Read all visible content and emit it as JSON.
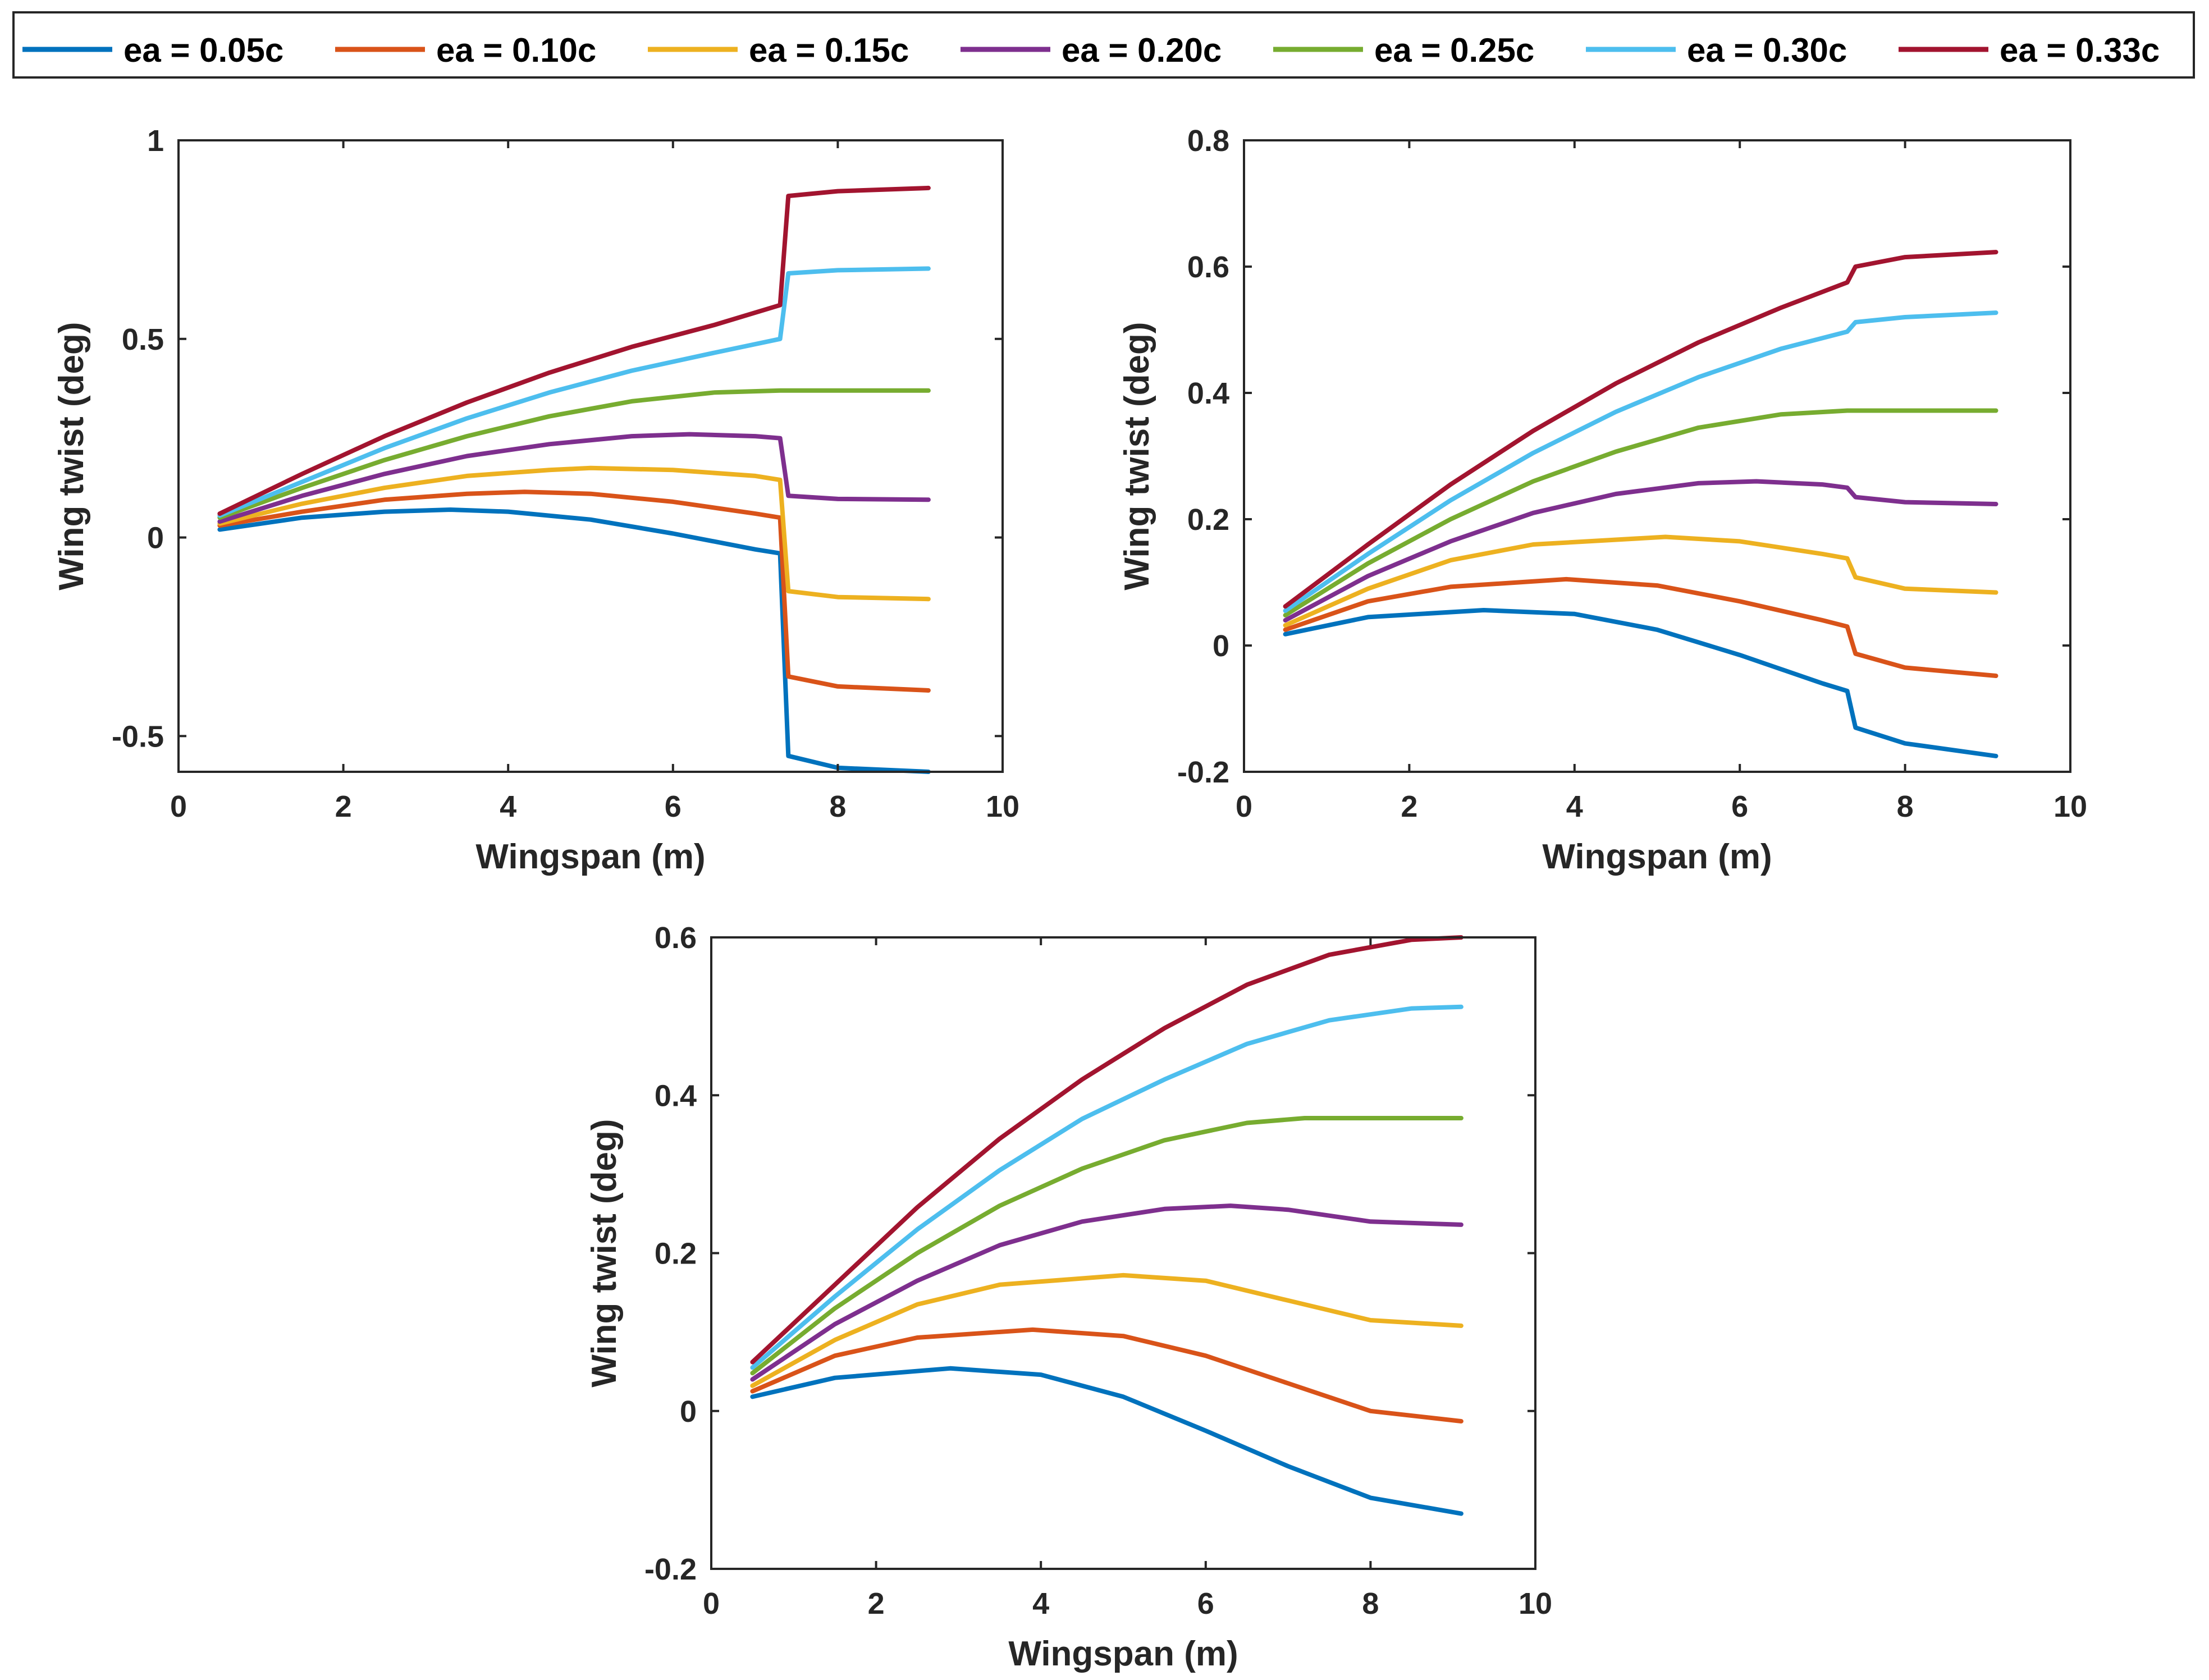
{
  "legend": [
    {
      "label": "ea = 0.05c",
      "color": "#0072BD"
    },
    {
      "label": "ea = 0.10c",
      "color": "#D95319"
    },
    {
      "label": "ea = 0.15c",
      "color": "#EDB120"
    },
    {
      "label": "ea = 0.20c",
      "color": "#7E2F8E"
    },
    {
      "label": "ea = 0.25c",
      "color": "#77AC30"
    },
    {
      "label": "ea = 0.30c",
      "color": "#4DBEEE"
    },
    {
      "label": "ea = 0.33c",
      "color": "#A2142F"
    }
  ],
  "chart_data": [
    {
      "type": "line",
      "title": "",
      "xlabel": "Wingspan (m)",
      "ylabel": "Wing twist (deg)",
      "xlim": [
        0,
        10
      ],
      "ylim": [
        -0.59,
        1
      ],
      "xticks": [
        0,
        2,
        4,
        6,
        8,
        10
      ],
      "yticks": [
        -0.5,
        0,
        0.5,
        1
      ],
      "ytick_labels": [
        "-0.5",
        "0",
        "0.5",
        "1"
      ],
      "series": [
        {
          "name": "ea = 0.05c",
          "x": [
            0.5,
            1.5,
            2.5,
            3.3,
            4.0,
            5.0,
            6.0,
            7.0,
            7.3,
            7.4,
            8.0,
            9.1
          ],
          "y": [
            0.02,
            0.05,
            0.065,
            0.07,
            0.065,
            0.045,
            0.01,
            -0.03,
            -0.04,
            -0.55,
            -0.58,
            -0.59
          ]
        },
        {
          "name": "ea = 0.10c",
          "x": [
            0.5,
            1.5,
            2.5,
            3.5,
            4.2,
            5.0,
            6.0,
            7.0,
            7.3,
            7.4,
            8.0,
            9.1
          ],
          "y": [
            0.03,
            0.065,
            0.095,
            0.11,
            0.115,
            0.11,
            0.09,
            0.06,
            0.05,
            -0.35,
            -0.375,
            -0.385
          ]
        },
        {
          "name": "ea = 0.15c",
          "x": [
            0.5,
            1.5,
            2.5,
            3.5,
            4.5,
            5.0,
            6.0,
            7.0,
            7.3,
            7.4,
            8.0,
            9.1
          ],
          "y": [
            0.035,
            0.085,
            0.125,
            0.155,
            0.17,
            0.175,
            0.17,
            0.155,
            0.145,
            -0.135,
            -0.15,
            -0.155
          ]
        },
        {
          "name": "ea = 0.20c",
          "x": [
            0.5,
            1.5,
            2.5,
            3.5,
            4.5,
            5.5,
            6.2,
            7.0,
            7.3,
            7.4,
            8.0,
            9.1
          ],
          "y": [
            0.04,
            0.105,
            0.16,
            0.205,
            0.235,
            0.255,
            0.26,
            0.255,
            0.25,
            0.105,
            0.097,
            0.095
          ]
        },
        {
          "name": "ea = 0.25c",
          "x": [
            0.5,
            1.5,
            2.5,
            3.5,
            4.5,
            5.5,
            6.5,
            7.3,
            8.0,
            9.1
          ],
          "y": [
            0.05,
            0.125,
            0.195,
            0.255,
            0.305,
            0.343,
            0.365,
            0.37,
            0.37,
            0.37
          ]
        },
        {
          "name": "ea = 0.30c",
          "x": [
            0.5,
            1.5,
            2.5,
            3.5,
            4.5,
            5.5,
            6.5,
            7.3,
            7.4,
            8.0,
            9.1
          ],
          "y": [
            0.055,
            0.14,
            0.225,
            0.3,
            0.365,
            0.42,
            0.465,
            0.5,
            0.665,
            0.673,
            0.677
          ]
        },
        {
          "name": "ea = 0.33c",
          "x": [
            0.5,
            1.5,
            2.5,
            3.5,
            4.5,
            5.5,
            6.5,
            7.3,
            7.4,
            8.0,
            9.1
          ],
          "y": [
            0.06,
            0.16,
            0.255,
            0.34,
            0.415,
            0.48,
            0.535,
            0.585,
            0.86,
            0.872,
            0.88
          ]
        }
      ]
    },
    {
      "type": "line",
      "title": "",
      "xlabel": "Wingspan (m)",
      "ylabel": "Wing twist (deg)",
      "xlim": [
        0,
        10
      ],
      "ylim": [
        -0.2,
        0.8
      ],
      "xticks": [
        0,
        2,
        4,
        6,
        8,
        10
      ],
      "yticks": [
        -0.2,
        0,
        0.2,
        0.4,
        0.6,
        0.8
      ],
      "ytick_labels": [
        "-0.2",
        "0",
        "0.2",
        "0.4",
        "0.6",
        "0.8"
      ],
      "series": [
        {
          "name": "ea = 0.05c",
          "x": [
            0.5,
            1.5,
            2.9,
            4.0,
            5.0,
            6.0,
            7.0,
            7.3,
            7.4,
            8.0,
            9.1
          ],
          "y": [
            0.018,
            0.045,
            0.056,
            0.05,
            0.025,
            -0.015,
            -0.06,
            -0.072,
            -0.13,
            -0.155,
            -0.175
          ]
        },
        {
          "name": "ea = 0.10c",
          "x": [
            0.5,
            1.5,
            2.5,
            3.9,
            5.0,
            6.0,
            7.0,
            7.3,
            7.4,
            8.0,
            9.1
          ],
          "y": [
            0.025,
            0.07,
            0.093,
            0.105,
            0.095,
            0.07,
            0.04,
            0.03,
            -0.013,
            -0.035,
            -0.048
          ]
        },
        {
          "name": "ea = 0.15c",
          "x": [
            0.5,
            1.5,
            2.5,
            3.5,
            5.1,
            6.0,
            7.0,
            7.3,
            7.4,
            8.0,
            9.1
          ],
          "y": [
            0.032,
            0.09,
            0.135,
            0.16,
            0.172,
            0.165,
            0.145,
            0.138,
            0.108,
            0.09,
            0.084
          ]
        },
        {
          "name": "ea = 0.20c",
          "x": [
            0.5,
            1.5,
            2.5,
            3.5,
            4.5,
            5.5,
            6.2,
            7.0,
            7.3,
            7.4,
            8.0,
            9.1
          ],
          "y": [
            0.04,
            0.11,
            0.165,
            0.21,
            0.24,
            0.257,
            0.26,
            0.255,
            0.25,
            0.235,
            0.227,
            0.224
          ]
        },
        {
          "name": "ea = 0.25c",
          "x": [
            0.5,
            1.5,
            2.5,
            3.5,
            4.5,
            5.5,
            6.5,
            7.3,
            8.0,
            9.1
          ],
          "y": [
            0.048,
            0.13,
            0.2,
            0.26,
            0.307,
            0.345,
            0.366,
            0.372,
            0.372,
            0.372
          ]
        },
        {
          "name": "ea = 0.30c",
          "x": [
            0.5,
            1.5,
            2.5,
            3.5,
            4.5,
            5.5,
            6.5,
            7.3,
            7.4,
            8.0,
            9.1
          ],
          "y": [
            0.055,
            0.145,
            0.23,
            0.305,
            0.37,
            0.425,
            0.47,
            0.497,
            0.512,
            0.52,
            0.527
          ]
        },
        {
          "name": "ea = 0.33c",
          "x": [
            0.5,
            1.5,
            2.5,
            3.5,
            4.5,
            5.5,
            6.5,
            7.3,
            7.4,
            8.0,
            9.1
          ],
          "y": [
            0.062,
            0.16,
            0.255,
            0.34,
            0.415,
            0.48,
            0.535,
            0.575,
            0.6,
            0.615,
            0.623
          ]
        }
      ]
    },
    {
      "type": "line",
      "title": "",
      "xlabel": "Wingspan (m)",
      "ylabel": "Wing twist (deg)",
      "xlim": [
        0,
        10
      ],
      "ylim": [
        -0.2,
        0.6
      ],
      "xticks": [
        0,
        2,
        4,
        6,
        8,
        10
      ],
      "yticks": [
        -0.2,
        0,
        0.2,
        0.4,
        0.6
      ],
      "ytick_labels": [
        "-0.2",
        "0",
        "0.2",
        "0.4",
        "0.6"
      ],
      "series": [
        {
          "name": "ea = 0.05c",
          "x": [
            0.5,
            1.5,
            2.9,
            4.0,
            5.0,
            6.0,
            7.0,
            8.0,
            9.1
          ],
          "y": [
            0.018,
            0.042,
            0.054,
            0.046,
            0.018,
            -0.025,
            -0.07,
            -0.11,
            -0.13
          ]
        },
        {
          "name": "ea = 0.10c",
          "x": [
            0.5,
            1.5,
            2.5,
            3.9,
            5.0,
            6.0,
            7.0,
            8.0,
            9.1
          ],
          "y": [
            0.025,
            0.07,
            0.093,
            0.103,
            0.095,
            0.07,
            0.035,
            0.0,
            -0.013
          ]
        },
        {
          "name": "ea = 0.15c",
          "x": [
            0.5,
            1.5,
            2.5,
            3.5,
            5.0,
            6.0,
            7.0,
            8.0,
            9.1
          ],
          "y": [
            0.032,
            0.09,
            0.135,
            0.16,
            0.172,
            0.165,
            0.14,
            0.115,
            0.108
          ]
        },
        {
          "name": "ea = 0.20c",
          "x": [
            0.5,
            1.5,
            2.5,
            3.5,
            4.5,
            5.5,
            6.3,
            7.0,
            8.0,
            9.1
          ],
          "y": [
            0.04,
            0.11,
            0.165,
            0.21,
            0.24,
            0.256,
            0.26,
            0.255,
            0.24,
            0.236
          ]
        },
        {
          "name": "ea = 0.25c",
          "x": [
            0.5,
            1.5,
            2.5,
            3.5,
            4.5,
            5.5,
            6.5,
            7.2,
            8.0,
            9.1
          ],
          "y": [
            0.048,
            0.13,
            0.2,
            0.26,
            0.307,
            0.343,
            0.365,
            0.371,
            0.371,
            0.371
          ]
        },
        {
          "name": "ea = 0.30c",
          "x": [
            0.5,
            1.5,
            2.5,
            3.5,
            4.5,
            5.5,
            6.5,
            7.5,
            8.5,
            9.1
          ],
          "y": [
            0.055,
            0.145,
            0.23,
            0.305,
            0.37,
            0.42,
            0.465,
            0.495,
            0.51,
            0.512
          ]
        },
        {
          "name": "ea = 0.33c",
          "x": [
            0.5,
            1.5,
            2.5,
            3.5,
            4.5,
            5.5,
            6.5,
            7.5,
            8.5,
            9.1
          ],
          "y": [
            0.062,
            0.16,
            0.258,
            0.345,
            0.42,
            0.485,
            0.54,
            0.578,
            0.597,
            0.6
          ]
        }
      ]
    }
  ]
}
